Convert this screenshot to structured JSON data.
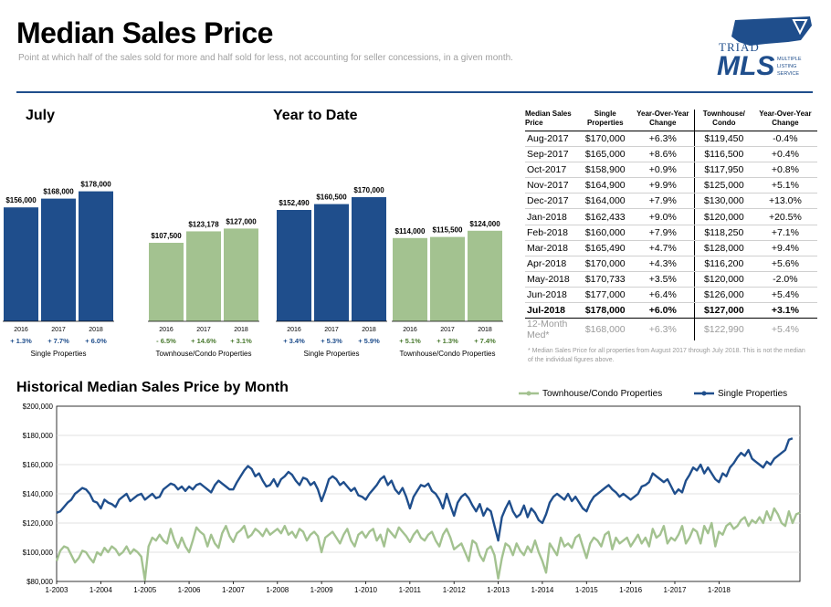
{
  "header": {
    "title": "Median Sales Price",
    "subtitle": "Point at which half of the sales sold for more and half sold for less, not accounting for seller concessions, in a given month."
  },
  "logo": {
    "word1": "TRIAD",
    "word2": "MLS",
    "small": [
      "MULTIPLE",
      "LISTING",
      "SERVICE"
    ],
    "color": "#1f4e8c"
  },
  "colors": {
    "single": "#1f4e8c",
    "townhouse": "#a3c290",
    "positive": "#1f4e8c",
    "negative": "#4a7a30"
  },
  "chart_data": [
    {
      "type": "bar",
      "title": "July",
      "groups": [
        {
          "name": "Single Properties",
          "series": "single",
          "categories": [
            "2016",
            "2017",
            "2018"
          ],
          "values": [
            156000,
            168000,
            178000
          ],
          "labels": [
            "$156,000",
            "$168,000",
            "$178,000"
          ],
          "changes": [
            "+ 1.3%",
            "+ 7.7%",
            "+ 6.0%"
          ]
        },
        {
          "name": "Townhouse/Condo Properties",
          "series": "townhouse",
          "categories": [
            "2016",
            "2017",
            "2018"
          ],
          "values": [
            107500,
            123178,
            127000
          ],
          "labels": [
            "$107,500",
            "$123,178",
            "$127,000"
          ],
          "changes": [
            "- 6.5%",
            "+ 14.6%",
            "+ 3.1%"
          ]
        }
      ]
    },
    {
      "type": "bar",
      "title": "Year to Date",
      "groups": [
        {
          "name": "Single Properties",
          "series": "single",
          "categories": [
            "2016",
            "2017",
            "2018"
          ],
          "values": [
            152490,
            160500,
            170000
          ],
          "labels": [
            "$152,490",
            "$160,500",
            "$170,000"
          ],
          "changes": [
            "+ 3.4%",
            "+ 5.3%",
            "+ 5.9%"
          ]
        },
        {
          "name": "Townhouse/Condo Properties",
          "series": "townhouse",
          "categories": [
            "2016",
            "2017",
            "2018"
          ],
          "values": [
            114000,
            115500,
            124000
          ],
          "labels": [
            "$114,000",
            "$115,500",
            "$124,000"
          ],
          "changes": [
            "+ 5.1%",
            "+ 1.3%",
            "+ 7.4%"
          ]
        }
      ]
    },
    {
      "type": "table",
      "columns": [
        "Median Sales Price",
        "Single Properties",
        "Year-Over-Year Change",
        "Townhouse/ Condo",
        "Year-Over-Year Change"
      ],
      "rows": [
        [
          "Aug-2017",
          "$170,000",
          "+6.3%",
          "$119,450",
          "-0.4%"
        ],
        [
          "Sep-2017",
          "$165,000",
          "+8.6%",
          "$116,500",
          "+0.4%"
        ],
        [
          "Oct-2017",
          "$158,900",
          "+0.9%",
          "$117,950",
          "+0.8%"
        ],
        [
          "Nov-2017",
          "$164,900",
          "+9.9%",
          "$125,000",
          "+5.1%"
        ],
        [
          "Dec-2017",
          "$164,000",
          "+7.9%",
          "$130,000",
          "+13.0%"
        ],
        [
          "Jan-2018",
          "$162,433",
          "+9.0%",
          "$120,000",
          "+20.5%"
        ],
        [
          "Feb-2018",
          "$160,000",
          "+7.9%",
          "$118,250",
          "+7.1%"
        ],
        [
          "Mar-2018",
          "$165,490",
          "+4.7%",
          "$128,000",
          "+9.4%"
        ],
        [
          "Apr-2018",
          "$170,000",
          "+4.3%",
          "$116,200",
          "+5.6%"
        ],
        [
          "May-2018",
          "$170,733",
          "+3.5%",
          "$120,000",
          "-2.0%"
        ],
        [
          "Jun-2018",
          "$177,000",
          "+6.4%",
          "$126,000",
          "+5.4%"
        ],
        [
          "Jul-2018",
          "$178,000",
          "+6.0%",
          "$127,000",
          "+3.1%"
        ],
        [
          "12-Month Med*",
          "$168,000",
          "+6.3%",
          "$122,990",
          "+5.4%"
        ]
      ],
      "footnote": "* Median Sales Price for all properties from August 2017 through July 2018. This is not the median of the individual figures above."
    },
    {
      "type": "line",
      "title": "Historical Median Sales Price by Month",
      "x_ticks": [
        "1-2003",
        "1-2004",
        "1-2005",
        "1-2006",
        "1-2007",
        "1-2008",
        "1-2009",
        "1-2010",
        "1-2011",
        "1-2012",
        "1-2013",
        "1-2014",
        "1-2015",
        "1-2016",
        "1-2017",
        "1-2018"
      ],
      "x_start": "2003-01",
      "y_ticks": [
        "$80,000",
        "$100,000",
        "$120,000",
        "$140,000",
        "$160,000",
        "$180,000",
        "$200,000"
      ],
      "ylim": [
        80000,
        200000
      ],
      "grid": true,
      "legend_position": "top-right",
      "series": [
        {
          "name": "Townhouse/Condo Properties",
          "color": "#a3c290",
          "values": [
            94000,
            101000,
            104000,
            103000,
            98000,
            93000,
            96000,
            101000,
            100000,
            96000,
            93000,
            100000,
            98000,
            103000,
            100000,
            104000,
            102000,
            98000,
            100000,
            104000,
            99000,
            102000,
            100000,
            97000,
            81000,
            104000,
            110000,
            108000,
            112000,
            108000,
            106000,
            116000,
            108000,
            103000,
            110000,
            104000,
            100000,
            108000,
            117000,
            114000,
            112000,
            104000,
            112000,
            106000,
            103000,
            113000,
            118000,
            111000,
            107000,
            113000,
            115000,
            118000,
            110000,
            112000,
            116000,
            114000,
            111000,
            116000,
            112000,
            114000,
            116000,
            113000,
            118000,
            112000,
            114000,
            110000,
            116000,
            114000,
            108000,
            112000,
            114000,
            111000,
            100000,
            110000,
            112000,
            114000,
            110000,
            106000,
            112000,
            116000,
            108000,
            104000,
            112000,
            114000,
            110000,
            114000,
            116000,
            108000,
            112000,
            104000,
            116000,
            113000,
            110000,
            117000,
            114000,
            111000,
            107000,
            112000,
            115000,
            110000,
            108000,
            112000,
            114000,
            108000,
            104000,
            112000,
            116000,
            110000,
            102000,
            104000,
            106000,
            100000,
            94000,
            108000,
            106000,
            98000,
            94000,
            102000,
            104000,
            98000,
            82000,
            96000,
            106000,
            104000,
            98000,
            106000,
            101000,
            98000,
            104000,
            100000,
            108000,
            100000,
            94000,
            86000,
            106000,
            102000,
            98000,
            110000,
            104000,
            106000,
            103000,
            110000,
            112000,
            104000,
            96000,
            106000,
            110000,
            108000,
            104000,
            112000,
            114000,
            102000,
            110000,
            106000,
            108000,
            110000,
            104000,
            108000,
            112000,
            106000,
            110000,
            104000,
            116000,
            110000,
            112000,
            118000,
            106000,
            110000,
            108000,
            112000,
            118000,
            106000,
            110000,
            116000,
            114000,
            106000,
            118000,
            113000,
            120000,
            104000,
            114000,
            112000,
            118000,
            120000,
            116000,
            118000,
            122000,
            124000,
            118000,
            122000,
            120000,
            124000,
            120000,
            128000,
            122000,
            130000,
            126000,
            120000,
            118000,
            128000,
            120000,
            126000,
            127000
          ]
        },
        {
          "name": "Single Properties",
          "color": "#1f4e8c",
          "values": [
            127000,
            128000,
            131000,
            134000,
            136000,
            140000,
            142000,
            144000,
            143000,
            140000,
            135000,
            134000,
            130000,
            136000,
            134000,
            133000,
            131000,
            136000,
            138000,
            140000,
            135000,
            137000,
            139000,
            140000,
            136000,
            138000,
            140000,
            137000,
            138000,
            143000,
            145000,
            147000,
            146000,
            143000,
            145000,
            142000,
            145000,
            143000,
            146000,
            147000,
            145000,
            143000,
            141000,
            146000,
            149000,
            147000,
            145000,
            143000,
            143000,
            148000,
            152000,
            156000,
            159000,
            157000,
            152000,
            154000,
            149000,
            145000,
            146000,
            150000,
            145000,
            150000,
            152000,
            155000,
            153000,
            149000,
            146000,
            151000,
            150000,
            146000,
            148000,
            143000,
            135000,
            142000,
            150000,
            152000,
            150000,
            146000,
            148000,
            145000,
            142000,
            144000,
            139000,
            138000,
            136000,
            140000,
            143000,
            146000,
            150000,
            152000,
            146000,
            149000,
            143000,
            140000,
            144000,
            138000,
            130000,
            138000,
            142000,
            146000,
            145000,
            147000,
            142000,
            140000,
            136000,
            130000,
            140000,
            132000,
            125000,
            134000,
            138000,
            140000,
            137000,
            132000,
            128000,
            133000,
            125000,
            130000,
            128000,
            118000,
            108000,
            124000,
            130000,
            135000,
            128000,
            124000,
            126000,
            132000,
            124000,
            130000,
            127000,
            122000,
            120000,
            126000,
            134000,
            138000,
            140000,
            138000,
            136000,
            140000,
            135000,
            138000,
            134000,
            130000,
            128000,
            134000,
            138000,
            140000,
            142000,
            144000,
            146000,
            143000,
            141000,
            138000,
            140000,
            138000,
            136000,
            138000,
            140000,
            145000,
            146000,
            148000,
            154000,
            152000,
            150000,
            148000,
            150000,
            145000,
            140000,
            143000,
            141000,
            149000,
            153000,
            158000,
            156000,
            160000,
            154000,
            158000,
            154000,
            150000,
            148000,
            154000,
            152000,
            158000,
            161000,
            165000,
            168000,
            166000,
            170000,
            164000,
            162000,
            160000,
            158000,
            162000,
            160000,
            164000,
            166000,
            168000,
            170000,
            177000,
            178000
          ]
        }
      ]
    }
  ]
}
